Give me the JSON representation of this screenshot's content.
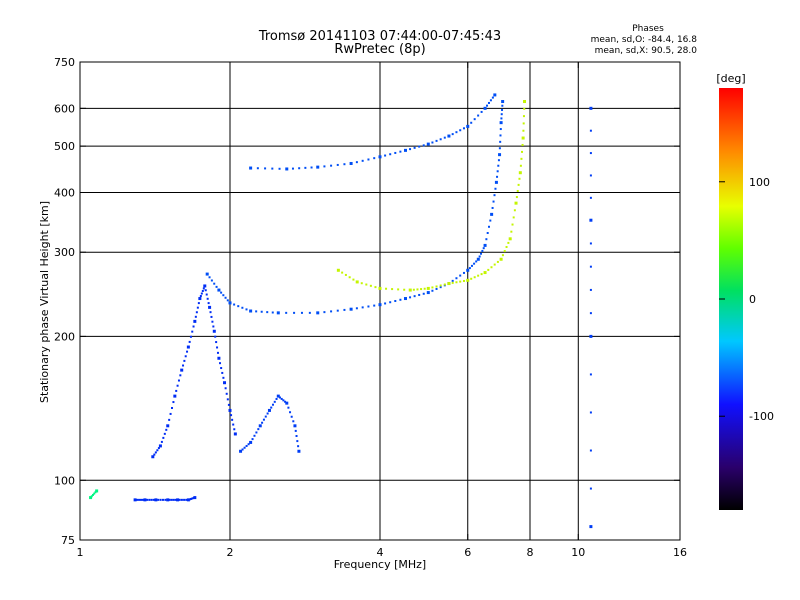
{
  "chart_data": {
    "type": "scatter",
    "title": "Tromsø 20141103 07:44:00-07:45:43",
    "subtitle": "RwPretec (8p)",
    "xlabel": "Frequency [MHz]",
    "ylabel": "Stationary phase Virtual Height [km]",
    "xscale": "log",
    "yscale": "log",
    "xlim": [
      1,
      16
    ],
    "ylim": [
      75,
      750
    ],
    "xticks": [
      1,
      2,
      4,
      6,
      8,
      10,
      16
    ],
    "xtick_labels": [
      "1",
      "2",
      "4",
      "6",
      "8",
      "10",
      "16"
    ],
    "xgrid": [
      2,
      4,
      6,
      8,
      10
    ],
    "yticks": [
      75,
      100,
      200,
      300,
      400,
      500,
      600,
      750
    ],
    "ytick_labels": [
      "75",
      "100",
      "200",
      "300",
      "400",
      "500",
      "600",
      "750"
    ],
    "ygrid": [
      100,
      200,
      300,
      400,
      500,
      600
    ],
    "grid": true,
    "stats": {
      "title": "Phases",
      "line1": "mean, sd,O: -84.4, 16.8",
      "line2": "mean, sd,X:  90.5, 28.0"
    },
    "colorbar": {
      "label": "[deg]",
      "range": [
        -180,
        180
      ],
      "ticks": [
        100,
        0,
        -100
      ],
      "tick_labels": [
        "100",
        "0",
        "-100"
      ]
    },
    "traces": [
      {
        "id": "E-layer low",
        "phase_deg": -105,
        "points": [
          [
            1.29,
            91
          ],
          [
            1.35,
            91
          ],
          [
            1.42,
            91
          ],
          [
            1.5,
            91
          ],
          [
            1.57,
            91
          ],
          [
            1.65,
            91
          ],
          [
            1.7,
            92
          ]
        ]
      },
      {
        "id": "E-layer start",
        "phase_deg": -10,
        "points": [
          [
            1.05,
            92
          ],
          [
            1.08,
            95
          ]
        ]
      },
      {
        "id": "Es cluster A",
        "phase_deg": -105,
        "points": [
          [
            1.4,
            112
          ],
          [
            1.45,
            118
          ],
          [
            1.5,
            130
          ],
          [
            1.55,
            150
          ],
          [
            1.6,
            170
          ],
          [
            1.65,
            190
          ],
          [
            1.7,
            215
          ],
          [
            1.74,
            240
          ],
          [
            1.78,
            255
          ],
          [
            1.82,
            230
          ],
          [
            1.86,
            205
          ],
          [
            1.9,
            180
          ],
          [
            1.95,
            160
          ],
          [
            2.0,
            140
          ],
          [
            2.05,
            125
          ]
        ]
      },
      {
        "id": "Es cluster B",
        "phase_deg": -100,
        "points": [
          [
            2.1,
            115
          ],
          [
            2.2,
            120
          ],
          [
            2.3,
            130
          ],
          [
            2.4,
            140
          ],
          [
            2.5,
            150
          ],
          [
            2.6,
            145
          ],
          [
            2.7,
            130
          ],
          [
            2.75,
            115
          ]
        ]
      },
      {
        "id": "F O-mode",
        "phase_deg": -95,
        "points": [
          [
            1.8,
            270
          ],
          [
            1.9,
            250
          ],
          [
            2.0,
            235
          ],
          [
            2.2,
            226
          ],
          [
            2.5,
            224
          ],
          [
            3.0,
            224
          ],
          [
            3.5,
            228
          ],
          [
            4.0,
            233
          ],
          [
            4.5,
            240
          ],
          [
            5.0,
            247
          ],
          [
            5.5,
            258
          ],
          [
            6.0,
            275
          ],
          [
            6.3,
            290
          ],
          [
            6.5,
            310
          ],
          [
            6.7,
            360
          ],
          [
            6.85,
            420
          ],
          [
            6.95,
            480
          ],
          [
            7.0,
            560
          ],
          [
            7.05,
            620
          ]
        ]
      },
      {
        "id": "F X-mode",
        "phase_deg": 90,
        "points": [
          [
            3.3,
            275
          ],
          [
            3.6,
            260
          ],
          [
            4.0,
            252
          ],
          [
            4.6,
            250
          ],
          [
            5.0,
            252
          ],
          [
            5.5,
            258
          ],
          [
            6.0,
            262
          ],
          [
            6.5,
            272
          ],
          [
            7.0,
            290
          ],
          [
            7.3,
            320
          ],
          [
            7.5,
            380
          ],
          [
            7.65,
            440
          ],
          [
            7.75,
            520
          ],
          [
            7.8,
            620
          ]
        ]
      },
      {
        "id": "F 2-hop",
        "phase_deg": -95,
        "points": [
          [
            2.2,
            450
          ],
          [
            2.6,
            448
          ],
          [
            3.0,
            452
          ],
          [
            3.5,
            460
          ],
          [
            4.0,
            475
          ],
          [
            4.5,
            490
          ],
          [
            5.0,
            505
          ],
          [
            5.5,
            525
          ],
          [
            6.0,
            550
          ],
          [
            6.5,
            600
          ],
          [
            6.8,
            640
          ]
        ]
      },
      {
        "id": "Interference column",
        "phase_deg": -100,
        "points": [
          [
            10.6,
            80
          ],
          [
            10.6,
            200
          ],
          [
            10.6,
            350
          ],
          [
            10.6,
            600
          ]
        ]
      }
    ]
  }
}
